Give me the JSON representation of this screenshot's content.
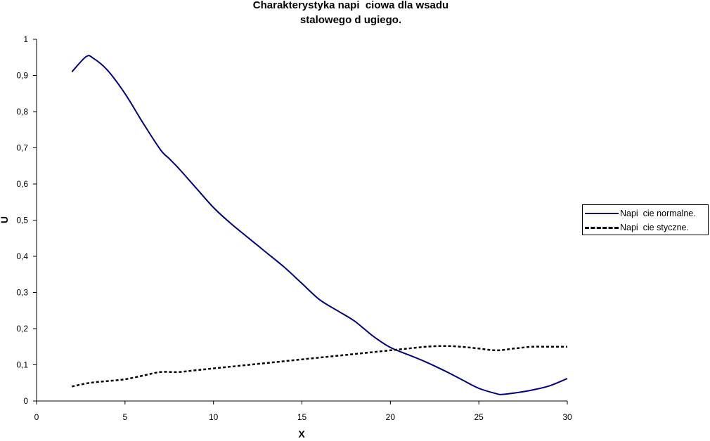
{
  "chart_data": {
    "type": "line",
    "title": "Charakterystyka napi  ciowa dla wsadu\nstalowego d ugiego.",
    "title_lines": [
      "Charakterystyka napi  ciowa dla wsadu",
      "stalowego d ugiego."
    ],
    "xlabel": "X",
    "ylabel": "U",
    "xlim": [
      0,
      30
    ],
    "ylim": [
      0,
      1
    ],
    "x_ticks": [
      "0",
      "5",
      "10",
      "15",
      "20",
      "25",
      "30"
    ],
    "y_ticks": [
      "0",
      "0,1",
      "0,2",
      "0,3",
      "0,4",
      "0,5",
      "0,6",
      "0,7",
      "0,8",
      "0,9",
      "1"
    ],
    "grid": false,
    "legend_position": "right",
    "series": [
      {
        "name": "Napi  cie normalne.",
        "color": "#000080",
        "style": "solid",
        "x": [
          2,
          2.8,
          3.2,
          4,
          5,
          6,
          7,
          7.5,
          8,
          9,
          10,
          11,
          12,
          13,
          14,
          15,
          16,
          17,
          18,
          19,
          20,
          21,
          22,
          23,
          24,
          25,
          26,
          26.3,
          27,
          28,
          29,
          30
        ],
        "values": [
          0.91,
          0.952,
          0.948,
          0.915,
          0.85,
          0.77,
          0.695,
          0.67,
          0.645,
          0.59,
          0.535,
          0.49,
          0.45,
          0.41,
          0.37,
          0.325,
          0.28,
          0.25,
          0.22,
          0.18,
          0.148,
          0.128,
          0.108,
          0.085,
          0.06,
          0.035,
          0.02,
          0.018,
          0.022,
          0.03,
          0.042,
          0.062
        ]
      },
      {
        "name": "Napi  cie styczne.",
        "color": "#000000",
        "style": "dashed",
        "x": [
          2,
          3,
          4,
          5,
          6,
          7,
          8,
          9,
          10,
          12,
          14,
          16,
          18,
          20,
          21,
          22,
          23,
          24,
          25,
          26,
          27,
          28,
          29,
          30
        ],
        "values": [
          0.04,
          0.05,
          0.055,
          0.06,
          0.07,
          0.08,
          0.08,
          0.085,
          0.09,
          0.1,
          0.11,
          0.12,
          0.13,
          0.14,
          0.145,
          0.15,
          0.152,
          0.15,
          0.145,
          0.14,
          0.145,
          0.15,
          0.15,
          0.15
        ]
      }
    ]
  }
}
